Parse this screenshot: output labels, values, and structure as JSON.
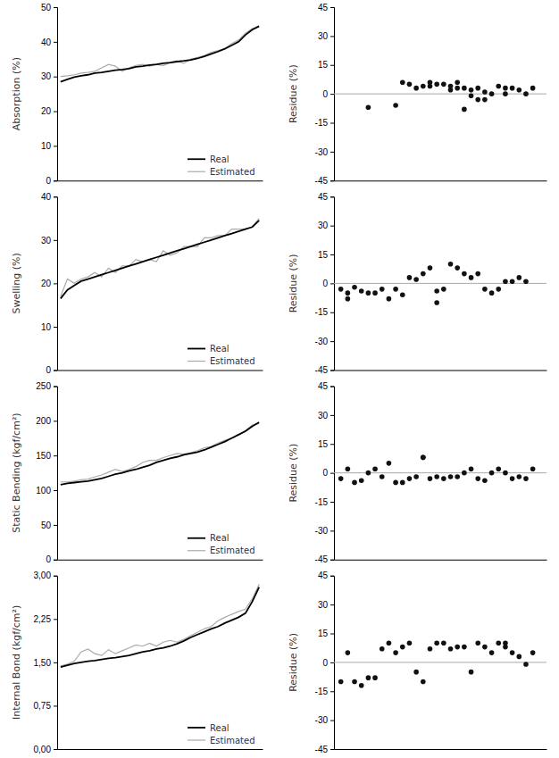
{
  "chart_data": [
    {
      "type": "line",
      "ylabel": "Absorption (%)",
      "x": [
        1,
        2,
        3,
        4,
        5,
        6,
        7,
        8,
        9,
        10,
        11,
        12,
        13,
        14,
        15,
        16,
        17,
        18,
        19,
        20,
        21,
        22,
        23,
        24,
        25,
        26,
        27,
        28,
        29,
        30
      ],
      "series": [
        {
          "name": "Real",
          "color": "#000000",
          "values": [
            28.5,
            29.2,
            29.8,
            30.2,
            30.5,
            31.0,
            31.2,
            31.5,
            31.8,
            32.0,
            32.3,
            32.8,
            33.0,
            33.3,
            33.5,
            33.8,
            34.0,
            34.3,
            34.5,
            34.8,
            35.2,
            35.8,
            36.5,
            37.2,
            38.0,
            39.0,
            40.0,
            42.0,
            43.5,
            44.5
          ]
        },
        {
          "name": "Estimated",
          "color": "#aaaaaa",
          "values": [
            30.0,
            30.2,
            30.5,
            31.0,
            31.2,
            31.5,
            32.5,
            33.5,
            33.0,
            31.5,
            32.5,
            33.2,
            33.5,
            33.0,
            33.5,
            33.2,
            34.0,
            34.5,
            33.8,
            35.0,
            35.5,
            36.0,
            37.0,
            37.5,
            38.0,
            39.5,
            40.5,
            42.5,
            43.8,
            44.5
          ]
        }
      ],
      "xlim": [
        0.5,
        30.5
      ],
      "ylim": [
        0,
        50
      ],
      "yticks": [
        0,
        10,
        20,
        30,
        40,
        50
      ],
      "legend": "lower right",
      "tick_labels": "y"
    },
    {
      "type": "scatter",
      "ylabel": "Residue (%)",
      "x": [
        5,
        9,
        10,
        11,
        12,
        13,
        14,
        14,
        15,
        16,
        17,
        17,
        18,
        18,
        19,
        19,
        20,
        20,
        21,
        21,
        22,
        22,
        23,
        24,
        25,
        25,
        26,
        27,
        28,
        29
      ],
      "values": [
        -7,
        -6,
        6,
        5,
        3,
        4,
        6,
        4,
        5,
        5,
        4,
        2,
        6,
        3,
        3,
        -8,
        2,
        -1,
        3,
        -3,
        1,
        -3,
        0,
        4,
        3,
        0,
        3,
        2,
        0,
        3
      ],
      "color": "#111111",
      "reference_lines": [
        {
          "value": 0,
          "color": "#aaaaaa"
        }
      ],
      "xlim": [
        0,
        31
      ],
      "ylim": [
        -45,
        45
      ],
      "yticks": [
        -45,
        -30,
        -15,
        0,
        15,
        30,
        45
      ],
      "tick_labels": "y"
    },
    {
      "type": "line",
      "ylabel": "Swelling (%)",
      "x": [
        1,
        2,
        3,
        4,
        5,
        6,
        7,
        8,
        9,
        10,
        11,
        12,
        13,
        14,
        15,
        16,
        17,
        18,
        19,
        20,
        21,
        22,
        23,
        24,
        25,
        26,
        27,
        28,
        29,
        30
      ],
      "series": [
        {
          "name": "Real",
          "color": "#000000",
          "values": [
            16.5,
            18.5,
            19.5,
            20.5,
            21.0,
            21.5,
            22.0,
            22.5,
            23.0,
            23.5,
            24.0,
            24.5,
            25.0,
            25.5,
            26.0,
            26.5,
            27.0,
            27.5,
            28.0,
            28.5,
            29.0,
            29.5,
            30.0,
            30.5,
            31.0,
            31.5,
            32.0,
            32.5,
            33.0,
            34.5
          ]
        },
        {
          "name": "Estimated",
          "color": "#aaaaaa",
          "values": [
            17.0,
            21.0,
            20.0,
            21.0,
            21.5,
            22.5,
            21.5,
            23.5,
            22.5,
            24.0,
            24.0,
            25.5,
            25.0,
            25.5,
            25.0,
            27.5,
            26.5,
            27.0,
            28.5,
            28.5,
            28.5,
            30.5,
            30.5,
            31.0,
            31.0,
            32.5,
            32.5,
            32.5,
            33.0,
            35.0
          ]
        }
      ],
      "xlim": [
        0.5,
        30.5
      ],
      "ylim": [
        0,
        40
      ],
      "yticks": [
        0,
        10,
        20,
        30,
        40
      ],
      "legend": "lower right",
      "tick_labels": "y"
    },
    {
      "type": "scatter",
      "ylabel": "Residue (%)",
      "x": [
        1,
        2,
        2,
        3,
        4,
        5,
        6,
        7,
        8,
        9,
        10,
        11,
        12,
        13,
        14,
        15,
        15,
        16,
        17,
        18,
        19,
        20,
        21,
        22,
        23,
        24,
        25,
        26,
        27,
        28
      ],
      "values": [
        -3,
        -8,
        -5,
        -2,
        -4,
        -5,
        -5,
        -3,
        -8,
        -3,
        -6,
        3,
        2,
        5,
        8,
        -10,
        -4,
        -3,
        10,
        8,
        5,
        3,
        5,
        -3,
        -5,
        -3,
        1,
        1,
        3,
        1
      ],
      "color": "#111111",
      "reference_lines": [
        {
          "value": 0,
          "color": "#aaaaaa"
        }
      ],
      "xlim": [
        0,
        31
      ],
      "ylim": [
        -45,
        45
      ],
      "yticks": [
        -45,
        -30,
        -15,
        0,
        15,
        30,
        45
      ],
      "tick_labels": "y"
    },
    {
      "type": "line",
      "ylabel": "Static Bending (kgf/cm²)",
      "x": [
        1,
        2,
        3,
        4,
        5,
        6,
        7,
        8,
        9,
        10,
        11,
        12,
        13,
        14,
        15,
        16,
        17,
        18,
        19,
        20,
        21,
        22,
        23,
        24,
        25,
        26,
        27,
        28,
        29,
        30
      ],
      "series": [
        {
          "name": "Real",
          "color": "#000000",
          "values": [
            108,
            110,
            111,
            112,
            113,
            115,
            117,
            120,
            123,
            125,
            128,
            130,
            133,
            136,
            140,
            143,
            146,
            148,
            151,
            153,
            155,
            158,
            162,
            166,
            170,
            175,
            180,
            185,
            192,
            198
          ]
        },
        {
          "name": "Estimated",
          "color": "#aaaaaa",
          "values": [
            112,
            112,
            113,
            115,
            116,
            119,
            122,
            126,
            130,
            127,
            130,
            134,
            140,
            143,
            143,
            147,
            150,
            153,
            152,
            154,
            157,
            161,
            163,
            168,
            172,
            175,
            180,
            186,
            194,
            196
          ]
        }
      ],
      "xlim": [
        0.5,
        30.5
      ],
      "ylim": [
        0,
        250
      ],
      "yticks": [
        0,
        50,
        100,
        150,
        200,
        250
      ],
      "legend": "lower right",
      "tick_labels": "y"
    },
    {
      "type": "scatter",
      "ylabel": "Residue (%)",
      "x": [
        1,
        2,
        3,
        4,
        5,
        6,
        7,
        8,
        9,
        10,
        11,
        12,
        13,
        13,
        14,
        15,
        16,
        17,
        18,
        19,
        20,
        21,
        22,
        23,
        24,
        25,
        26,
        27,
        28,
        29
      ],
      "values": [
        -3,
        2,
        -5,
        -4,
        0,
        2,
        -2,
        5,
        -5,
        -5,
        -3,
        -2,
        8,
        8,
        -3,
        -2,
        -3,
        -2,
        -2,
        0,
        2,
        -3,
        -4,
        0,
        2,
        0,
        -3,
        -2,
        -3,
        2
      ],
      "color": "#111111",
      "reference_lines": [
        {
          "value": 0,
          "color": "#aaaaaa"
        }
      ],
      "xlim": [
        0,
        31
      ],
      "ylim": [
        -45,
        45
      ],
      "yticks": [
        -45,
        -30,
        -15,
        0,
        15,
        30,
        45
      ],
      "tick_labels": "y"
    },
    {
      "type": "line",
      "ylabel": "Internal Bond (kgf/cm²)",
      "x": [
        1,
        2,
        3,
        4,
        5,
        6,
        7,
        8,
        9,
        10,
        11,
        12,
        13,
        14,
        15,
        16,
        17,
        18,
        19,
        20,
        21,
        22,
        23,
        24,
        25,
        26,
        27,
        28,
        29,
        30
      ],
      "series": [
        {
          "name": "Real",
          "color": "#000000",
          "values": [
            1.42,
            1.45,
            1.48,
            1.5,
            1.52,
            1.53,
            1.55,
            1.57,
            1.58,
            1.6,
            1.62,
            1.65,
            1.68,
            1.7,
            1.73,
            1.75,
            1.78,
            1.82,
            1.87,
            1.93,
            1.98,
            2.03,
            2.08,
            2.12,
            2.18,
            2.23,
            2.28,
            2.35,
            2.55,
            2.8
          ]
        },
        {
          "name": "Estimated",
          "color": "#aaaaaa",
          "values": [
            1.44,
            1.47,
            1.52,
            1.68,
            1.73,
            1.65,
            1.62,
            1.72,
            1.65,
            1.7,
            1.75,
            1.8,
            1.78,
            1.83,
            1.78,
            1.85,
            1.88,
            1.85,
            1.9,
            1.96,
            2.02,
            2.08,
            2.12,
            2.22,
            2.28,
            2.33,
            2.38,
            2.42,
            2.6,
            2.85
          ]
        }
      ],
      "xlim": [
        0.5,
        30.5
      ],
      "ylim": [
        0.0,
        3.0
      ],
      "yticks": [
        {
          "value": 0.0,
          "label": "0,00"
        },
        {
          "value": 0.75,
          "label": "0,75"
        },
        {
          "value": 1.5,
          "label": "1,50"
        },
        {
          "value": 2.25,
          "label": "2,25"
        },
        {
          "value": 3.0,
          "label": "3,00"
        }
      ],
      "legend": "lower right",
      "tick_labels": "y"
    },
    {
      "type": "scatter",
      "ylabel": "Residue (%)",
      "x": [
        1,
        2,
        3,
        4,
        5,
        6,
        7,
        8,
        9,
        10,
        11,
        12,
        13,
        14,
        15,
        16,
        17,
        18,
        19,
        20,
        21,
        22,
        23,
        24,
        25,
        25,
        26,
        27,
        28,
        29
      ],
      "values": [
        -10,
        5,
        -10,
        -12,
        -8,
        -8,
        7,
        10,
        5,
        8,
        10,
        -5,
        -10,
        7,
        10,
        10,
        7,
        8,
        8,
        -5,
        10,
        8,
        5,
        10,
        10,
        8,
        5,
        3,
        -1,
        5
      ],
      "color": "#111111",
      "reference_lines": [
        {
          "value": 0,
          "color": "#aaaaaa"
        }
      ],
      "xlim": [
        0,
        31
      ],
      "ylim": [
        -45,
        45
      ],
      "yticks": [
        -45,
        -30,
        -15,
        0,
        15,
        30,
        45
      ],
      "tick_labels": "y"
    }
  ]
}
